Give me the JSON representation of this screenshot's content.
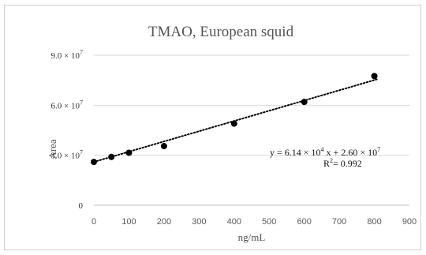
{
  "chart_data": {
    "type": "scatter",
    "title": "TMAO, European squid",
    "xlabel": "ng/mL",
    "ylabel": "Area",
    "xlim": [
      0,
      900
    ],
    "ylim": [
      0,
      90000000
    ],
    "x_ticks": [
      "0",
      "100",
      "200",
      "300",
      "400",
      "500",
      "600",
      "700",
      "800",
      "900"
    ],
    "y_ticks": [
      {
        "value": 0,
        "mantissa": "0",
        "exponent": ""
      },
      {
        "value": 30000000,
        "mantissa": "3.0 × 10",
        "exponent": "7"
      },
      {
        "value": 60000000,
        "mantissa": "6.0 × 10",
        "exponent": "7"
      },
      {
        "value": 90000000,
        "mantissa": "9.0 × 10",
        "exponent": "7"
      }
    ],
    "grid": {
      "horizontal": true,
      "vertical": false
    },
    "points": [
      {
        "x": 0,
        "y": 26000000
      },
      {
        "x": 50,
        "y": 29000000
      },
      {
        "x": 100,
        "y": 31500000
      },
      {
        "x": 200,
        "y": 35500000
      },
      {
        "x": 400,
        "y": 49000000
      },
      {
        "x": 600,
        "y": 62000000
      },
      {
        "x": 800,
        "y": 77500000
      }
    ],
    "trendline": {
      "slope": 61400,
      "intercept": 26000000,
      "style": "dotted",
      "equation_parts": [
        "y = 6.14 × 10",
        "4",
        " x + 2.60 × 10",
        "7"
      ],
      "r2_parts": [
        "R",
        "2",
        "= 0.992"
      ]
    },
    "colors": {
      "points": "#000000",
      "trendline": "#000000",
      "grid": "#d9d9d9",
      "axis": "#bfbfbf"
    }
  }
}
